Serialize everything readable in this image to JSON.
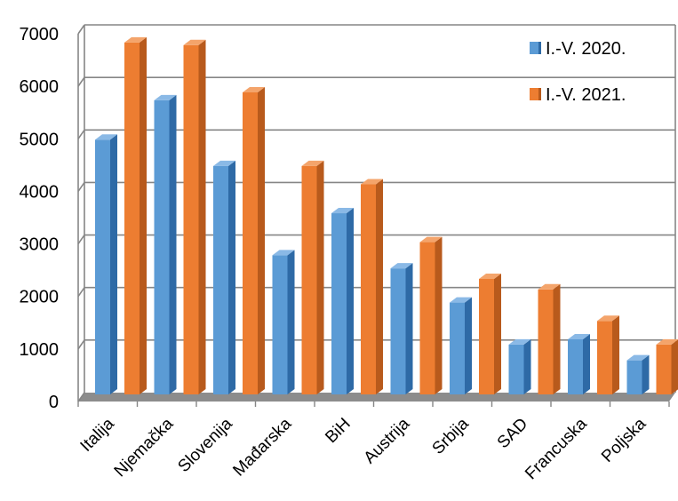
{
  "chart_data": {
    "type": "bar",
    "title": "",
    "xlabel": "",
    "ylabel": "",
    "categories": [
      "Italija",
      "Njemačka",
      "Slovenija",
      "Mađarska",
      "BiH",
      "Austrija",
      "Srbija",
      "SAD",
      "Francuska",
      "Poljska"
    ],
    "series": [
      {
        "name": "I.-V. 2020.",
        "values": [
          4950,
          5700,
          4450,
          2750,
          3550,
          2500,
          1850,
          1050,
          1150,
          750
        ]
      },
      {
        "name": "I.-V. 2021.",
        "values": [
          6800,
          6750,
          5850,
          4450,
          4100,
          3000,
          2300,
          2100,
          1500,
          1050
        ]
      }
    ],
    "ylim": [
      0,
      7000
    ],
    "yticks": [
      "0",
      "1000",
      "2000",
      "3000",
      "4000",
      "5000",
      "6000",
      "7000"
    ],
    "grid": true,
    "legend_position": "top-right",
    "three_d": true
  },
  "colors": {
    "series_2020_front": "#5b9bd5",
    "series_2020_top": "#8ab9e6",
    "series_2020_side": "#2e6aa6",
    "series_2021_front": "#ed7d31",
    "series_2021_top": "#f4a46b",
    "series_2021_side": "#b85a1c",
    "grid": "#868686",
    "floor": "#8c8c8c",
    "wall": "#ffffff"
  }
}
